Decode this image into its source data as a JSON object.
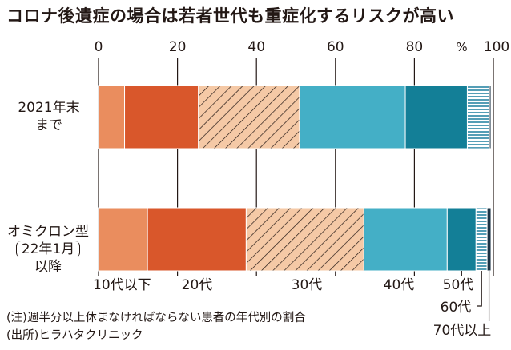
{
  "title": "コロナ後遺症の場合は若者世代も重症化するリスクが高い",
  "notes": {
    "note1": "(注)週半分以上休まなければならない患者の年代別の割合",
    "note2": "(出所)ヒラハタクリニック"
  },
  "rows": {
    "row1": {
      "line1": "2021年末",
      "line2": "まで"
    },
    "row2": {
      "line1": "オミクロン型",
      "line2": "22年1月",
      "line3": "以降"
    }
  },
  "chart_data": {
    "type": "bar",
    "stacked": true,
    "orientation": "horizontal",
    "xlim": [
      0,
      100
    ],
    "x_ticks": [
      "0",
      "20",
      "40",
      "60",
      "80",
      "100"
    ],
    "unit": "%",
    "categories": [
      "2021年末まで",
      "オミクロン型(22年1月以降)"
    ],
    "series": [
      {
        "name": "10代以下",
        "values": [
          6.6,
          12.4
        ],
        "color": "#ea8d5e",
        "pattern": "solid"
      },
      {
        "name": "20代",
        "values": [
          18.7,
          25.0
        ],
        "color": "#d9572b",
        "pattern": "solid"
      },
      {
        "name": "30代",
        "values": [
          25.6,
          29.8
        ],
        "color": "#f5c9a6",
        "pattern": "diagonal-hatch"
      },
      {
        "name": "40代",
        "values": [
          26.8,
          21.1
        ],
        "color": "#44afc6",
        "pattern": "solid"
      },
      {
        "name": "50代",
        "values": [
          15.7,
          7.3
        ],
        "color": "#137f97",
        "pattern": "solid"
      },
      {
        "name": "60代",
        "values": [
          5.6,
          2.8
        ],
        "color": "#2a86a4",
        "pattern": "horizontal-lines"
      },
      {
        "name": "70代以上",
        "values": [
          0.4,
          1.0
        ],
        "color": "#1c3345",
        "pattern": "solid"
      }
    ]
  }
}
